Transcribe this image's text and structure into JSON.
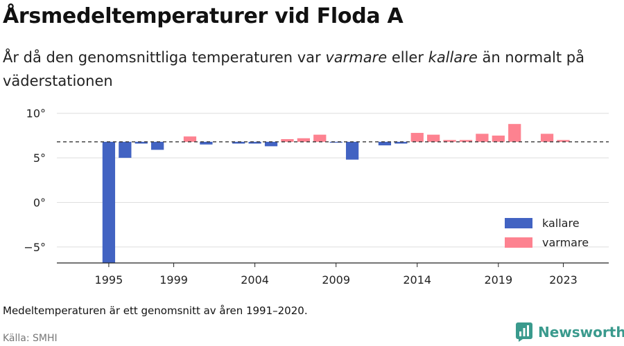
{
  "header": {
    "title": "Årsmedeltemperaturer vid Floda A",
    "subtitle_parts": [
      "År då den genomsnittliga temperaturen var ",
      "varmare",
      " eller ",
      "kallare",
      " än normalt på väderstationen"
    ]
  },
  "footer": {
    "note": "Medeltemperaturen är ett genomsnitt av åren 1991–2020.",
    "source": "Källa: SMHI",
    "brand": "Newsworthy",
    "brand_icon": "newsworthy-logo-icon"
  },
  "colors": {
    "colder": "#4263c2",
    "warmer": "#fd8290",
    "brand": "#3a9a8d"
  },
  "chart_data": {
    "type": "bar",
    "baseline": 6.8,
    "ylim": [
      -6.8,
      10.6
    ],
    "yticks": [
      10,
      5,
      0,
      -5
    ],
    "ytick_labels": [
      "10°",
      "5°",
      "0°",
      "−5°"
    ],
    "xticks": [
      1995,
      1999,
      2004,
      2009,
      2014,
      2019,
      2023
    ],
    "xlim": [
      1991.8,
      2025.8
    ],
    "grid": true,
    "legend": {
      "placement": "bottom-right",
      "items": [
        {
          "label": "kallare",
          "color": "#4263c2"
        },
        {
          "label": "varmare",
          "color": "#fd8290"
        }
      ]
    },
    "x": [
      1995,
      1996,
      1997,
      1998,
      2000,
      2001,
      2003,
      2004,
      2005,
      2006,
      2007,
      2008,
      2009,
      2010,
      2012,
      2013,
      2014,
      2015,
      2016,
      2017,
      2018,
      2019,
      2020,
      2022,
      2023
    ],
    "values": [
      -6.8,
      5.0,
      6.6,
      5.9,
      7.4,
      6.5,
      6.6,
      6.6,
      6.3,
      7.1,
      7.2,
      7.6,
      6.7,
      4.8,
      6.4,
      6.6,
      7.8,
      7.6,
      7.0,
      7.0,
      7.7,
      7.5,
      8.8,
      7.7,
      7.0
    ]
  }
}
